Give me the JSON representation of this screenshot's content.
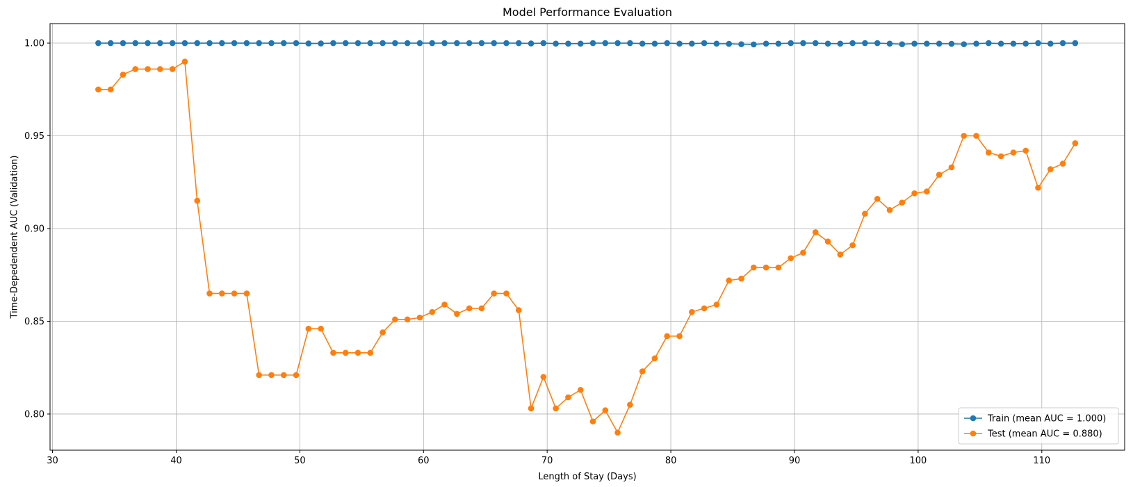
{
  "chart_data": {
    "type": "line",
    "title": "Model Performance Evaluation",
    "xlabel": "Length of Stay (Days)",
    "ylabel": "Time-Depedendent AUC (Validation)",
    "xlim": [
      29.8,
      116.7
    ],
    "ylim": [
      0.7805,
      1.0105
    ],
    "xticks": [
      30,
      40,
      50,
      60,
      70,
      80,
      90,
      100,
      110
    ],
    "yticks": [
      0.8,
      0.85,
      0.9,
      0.95,
      1.0
    ],
    "xtick_labels": [
      "30",
      "40",
      "50",
      "60",
      "70",
      "80",
      "90",
      "100",
      "110"
    ],
    "ytick_labels": [
      "0.80",
      "0.85",
      "0.90",
      "0.95",
      "1.00"
    ],
    "grid": true,
    "legend_position": "lower-right",
    "x": [
      33.7,
      34.7,
      35.7,
      36.7,
      37.7,
      38.7,
      39.7,
      40.7,
      41.7,
      42.7,
      43.7,
      44.7,
      45.7,
      46.7,
      47.7,
      48.7,
      49.7,
      50.7,
      51.7,
      52.7,
      53.7,
      54.7,
      55.7,
      56.7,
      57.7,
      58.7,
      59.7,
      60.7,
      61.7,
      62.7,
      63.7,
      64.7,
      65.7,
      66.7,
      67.7,
      68.7,
      69.7,
      70.7,
      71.7,
      72.7,
      73.7,
      74.7,
      75.7,
      76.7,
      77.7,
      78.7,
      79.7,
      80.7,
      81.7,
      82.7,
      83.7,
      84.7,
      85.7,
      86.7,
      87.7,
      88.7,
      89.7,
      90.7,
      91.7,
      92.7,
      93.7,
      94.7,
      95.7,
      96.7,
      97.7,
      98.7,
      99.7,
      100.7,
      101.7,
      102.7,
      103.7,
      104.7,
      105.7,
      106.7,
      107.7,
      108.7,
      109.7,
      110.7,
      111.7,
      112.7
    ],
    "series": [
      {
        "name": "Train (mean AUC = 1.000)",
        "color": "#1f77b4",
        "values": [
          1.0,
          1.0,
          1.0,
          1.0,
          1.0,
          1.0,
          1.0,
          1.0,
          1.0,
          1.0,
          1.0,
          1.0,
          1.0,
          1.0,
          1.0,
          1.0,
          1.0,
          0.9998,
          0.9998,
          1.0,
          1.0,
          1.0,
          1.0,
          1.0,
          1.0,
          1.0,
          1.0,
          1.0,
          1.0,
          1.0,
          1.0,
          1.0,
          1.0,
          1.0,
          1.0,
          0.9998,
          1.0,
          0.9997,
          0.9997,
          0.9997,
          1.0,
          1.0,
          1.0,
          1.0,
          0.9997,
          0.9997,
          1.0,
          0.9997,
          0.9997,
          1.0,
          0.9997,
          0.9996,
          0.9994,
          0.9993,
          0.9997,
          0.9997,
          1.0,
          1.0,
          1.0,
          0.9997,
          0.9997,
          1.0,
          1.0,
          1.0,
          0.9997,
          0.9994,
          0.9997,
          0.9997,
          0.9997,
          0.9996,
          0.9994,
          0.9997,
          1.0,
          0.9997,
          0.9997,
          0.9997,
          1.0,
          0.9997,
          1.0,
          1.0
        ]
      },
      {
        "name": "Test (mean AUC = 0.880)",
        "color": "#ff7f0e",
        "values": [
          0.975,
          0.975,
          0.983,
          0.986,
          0.986,
          0.986,
          0.986,
          0.99,
          0.915,
          0.865,
          0.865,
          0.865,
          0.865,
          0.821,
          0.821,
          0.821,
          0.821,
          0.846,
          0.846,
          0.833,
          0.833,
          0.833,
          0.833,
          0.844,
          0.851,
          0.851,
          0.852,
          0.855,
          0.859,
          0.854,
          0.857,
          0.857,
          0.865,
          0.865,
          0.856,
          0.803,
          0.82,
          0.803,
          0.809,
          0.813,
          0.796,
          0.802,
          0.79,
          0.805,
          0.823,
          0.83,
          0.842,
          0.842,
          0.855,
          0.857,
          0.859,
          0.872,
          0.873,
          0.879,
          0.879,
          0.879,
          0.884,
          0.887,
          0.898,
          0.893,
          0.886,
          0.891,
          0.908,
          0.916,
          0.91,
          0.914,
          0.919,
          0.92,
          0.929,
          0.933,
          0.95,
          0.95,
          0.941,
          0.939,
          0.941,
          0.942,
          0.922,
          0.932,
          0.935,
          0.946
        ]
      }
    ]
  }
}
